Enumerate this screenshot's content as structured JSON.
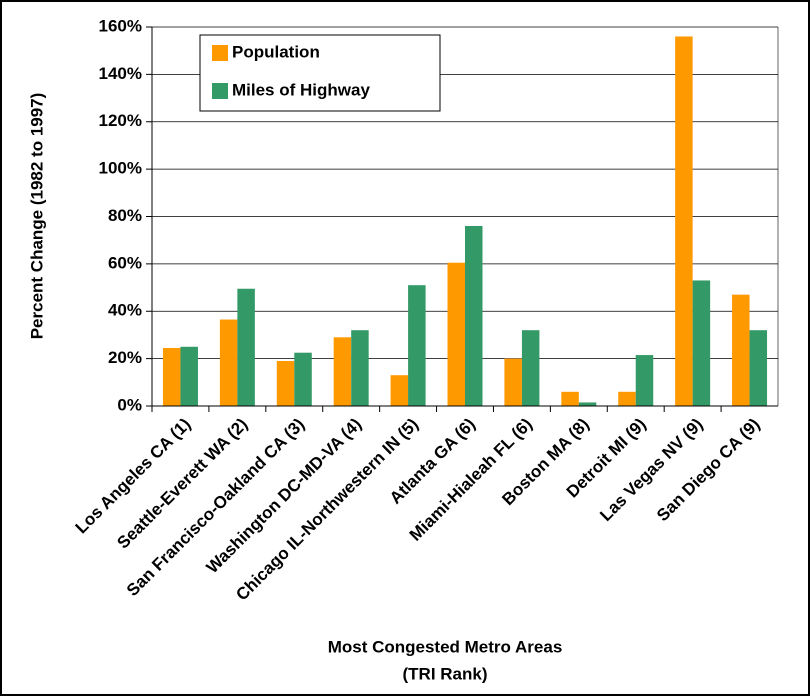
{
  "chart_data": {
    "type": "bar",
    "ylabel": "Percent Change (1982 to 1997)",
    "xlabel": [
      "Most Congested Metro Areas",
      "(TRI Rank)"
    ],
    "categories": [
      "Los Angeles CA (1)",
      "Seattle-Everett WA (2)",
      "San Francisco-Oakland CA (3)",
      "Washington DC-MD-VA (4)",
      "Chicago IL-Northwestern IN (5)",
      "Atlanta GA (6)",
      "Miami-Hialeah FL (6)",
      "Boston MA (8)",
      "Detroit MI (9)",
      "Las Vegas NV (9)",
      "San Diego CA (9)"
    ],
    "series": [
      {
        "name": "Population",
        "color": "#ff9900",
        "values": [
          24.5,
          36.5,
          19,
          29,
          13,
          60.5,
          20,
          6,
          6,
          156,
          47
        ]
      },
      {
        "name": "Miles of Highway",
        "color": "#339966",
        "values": [
          25,
          49.5,
          22.5,
          32,
          51,
          76,
          32,
          1.5,
          21.5,
          53,
          32
        ]
      }
    ],
    "ylim": [
      0,
      160
    ],
    "yticks": [
      {
        "value": 0,
        "label": "0%"
      },
      {
        "value": 20,
        "label": "20%"
      },
      {
        "value": 40,
        "label": "40%"
      },
      {
        "value": 60,
        "label": "60%"
      },
      {
        "value": 80,
        "label": "80%"
      },
      {
        "value": 100,
        "label": "100%"
      },
      {
        "value": 120,
        "label": "120%"
      },
      {
        "value": 140,
        "label": "140%"
      },
      {
        "value": 160,
        "label": "160%"
      }
    ],
    "grid": true,
    "legend": "top-left"
  }
}
